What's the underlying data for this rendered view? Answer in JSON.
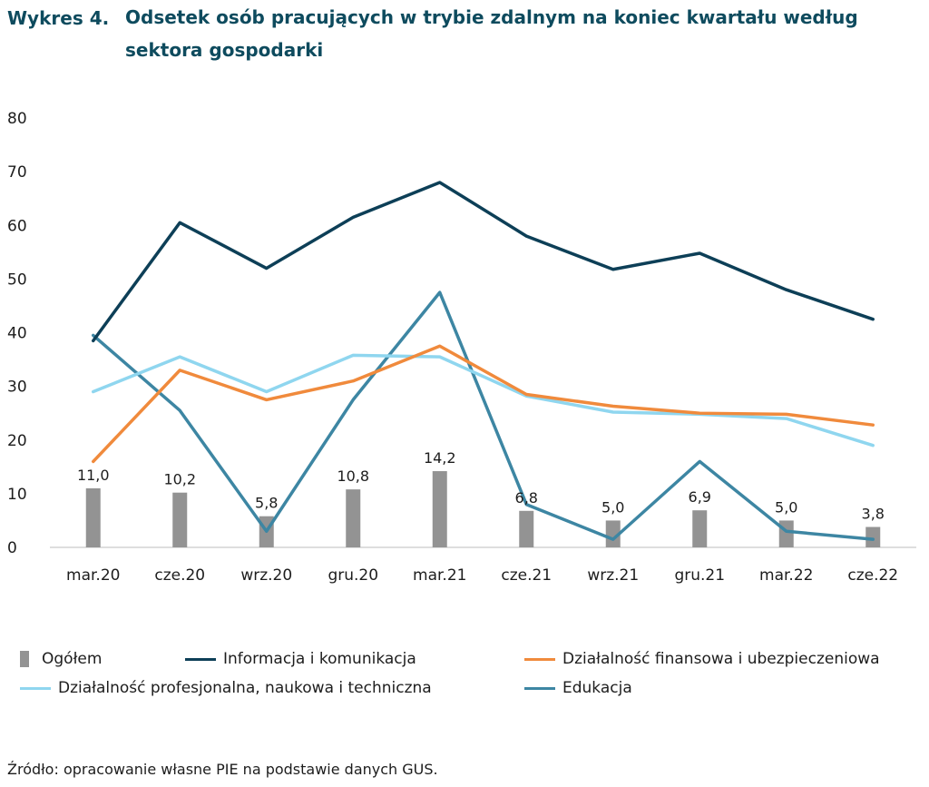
{
  "title": {
    "label": "Wykres 4.",
    "text": "Odsetek osób pracujących w trybie zdalnym na koniec kwartału według sektora gospodarki"
  },
  "source": "Źródło: opracowanie własne PIE na podstawie danych GUS.",
  "colors": {
    "ogolem": "#939393",
    "info": "#0d3f57",
    "fin": "#f08a3c",
    "prof": "#8fd6ef",
    "edu": "#3d86a3"
  },
  "chart_data": {
    "type": "bar+line",
    "categories": [
      "mar.20",
      "cze.20",
      "wrz.20",
      "gru.20",
      "mar.21",
      "cze.21",
      "wrz.21",
      "gru.21",
      "mar.22",
      "cze.22"
    ],
    "ylim": [
      0,
      80
    ],
    "yticks": [
      0,
      10,
      20,
      30,
      40,
      50,
      60,
      70,
      80
    ],
    "bar_series": {
      "name": "Ogółem",
      "values": [
        11.0,
        10.2,
        5.8,
        10.8,
        14.2,
        6.8,
        5.0,
        6.9,
        5.0,
        3.8
      ],
      "labels": [
        "11,0",
        "10,2",
        "5,8",
        "10,8",
        "14,2",
        "6,8",
        "5,0",
        "6,9",
        "5,0",
        "3,8"
      ]
    },
    "line_series": [
      {
        "key": "info",
        "name": "Informacja i komunikacja",
        "values": [
          38.5,
          60.5,
          52.0,
          61.5,
          68.0,
          58.0,
          51.8,
          54.8,
          48.0,
          42.5
        ]
      },
      {
        "key": "fin",
        "name": "Działalność finansowa i ubezpieczeniowa",
        "values": [
          16.0,
          33.0,
          27.5,
          31.0,
          37.5,
          28.5,
          26.3,
          25.0,
          24.8,
          22.8
        ]
      },
      {
        "key": "prof",
        "name": "Działalność profesjonalna, naukowa i techniczna",
        "values": [
          29.0,
          35.5,
          29.0,
          35.8,
          35.5,
          28.2,
          25.2,
          24.8,
          24.0,
          19.0
        ]
      },
      {
        "key": "edu",
        "name": "Edukacja",
        "values": [
          39.5,
          25.5,
          3.0,
          27.5,
          47.5,
          8.0,
          1.5,
          16.0,
          3.0,
          1.5
        ]
      }
    ],
    "legend_position": "bottom",
    "grid": false
  }
}
